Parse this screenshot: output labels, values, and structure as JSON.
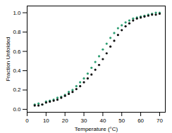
{
  "chart_data": {
    "type": "scatter",
    "x_label": "Temperature (°C)",
    "y_label": "Fraction Unfolded",
    "x": [
      4,
      6,
      8,
      10,
      12,
      14,
      16,
      18,
      20,
      22,
      24,
      26,
      28,
      30,
      32,
      34,
      36,
      38,
      40,
      42,
      44,
      46,
      48,
      50,
      52,
      54,
      56,
      58,
      60,
      62,
      64,
      66,
      68,
      70
    ],
    "series": [
      {
        "color": "#2e9e72",
        "values": [
          0.05,
          0.06,
          0.05,
          0.08,
          0.09,
          0.1,
          0.12,
          0.13,
          0.15,
          0.18,
          0.2,
          0.24,
          0.28,
          0.32,
          0.37,
          0.43,
          0.49,
          0.55,
          0.62,
          0.68,
          0.74,
          0.79,
          0.84,
          0.87,
          0.9,
          0.92,
          0.94,
          0.95,
          0.96,
          0.97,
          0.98,
          0.99,
          1.0,
          1.0
        ]
      },
      {
        "color": "#111111",
        "values": [
          0.04,
          0.04,
          0.05,
          0.07,
          0.08,
          0.09,
          0.1,
          0.12,
          0.14,
          0.16,
          0.18,
          0.21,
          0.24,
          0.28,
          0.32,
          0.36,
          0.41,
          0.46,
          0.52,
          0.58,
          0.65,
          0.71,
          0.77,
          0.82,
          0.86,
          0.89,
          0.92,
          0.94,
          0.95,
          0.96,
          0.97,
          0.98,
          0.98,
          0.99
        ]
      }
    ],
    "xlim": [
      0,
      73
    ],
    "xticks": [
      0,
      10,
      20,
      30,
      40,
      50,
      60,
      70
    ],
    "ylim": [
      -0.03,
      1.07
    ],
    "yticks": [
      {
        "value": 0,
        "label": "0.0"
      },
      0.2,
      0.4,
      0.6,
      0.8,
      {
        "value": 1,
        "label": "1.0"
      }
    ],
    "grid": false
  }
}
